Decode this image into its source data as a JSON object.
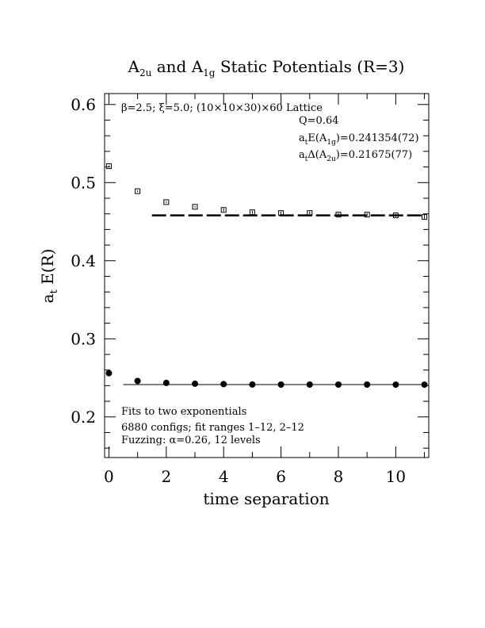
{
  "chart_data": {
    "type": "scatter",
    "title": {
      "a": "A",
      "a_sub": "2u",
      "mid": " and A",
      "b_sub": "1g",
      "end": " Static Potentials (R=3)"
    },
    "xlabel": "time separation",
    "ylabel": {
      "main": "a",
      "sub": "t",
      "rest": " E(R)"
    },
    "xlim": [
      -0.15,
      11.15
    ],
    "ylim": [
      0.148,
      0.614
    ],
    "x_ticks": [
      0,
      2,
      4,
      6,
      8,
      10
    ],
    "x_tick_labels": [
      "0",
      "2",
      "4",
      "6",
      "8",
      "10"
    ],
    "y_ticks": [
      0.2,
      0.3,
      0.4,
      0.5,
      0.6
    ],
    "y_tick_labels": [
      "0.2",
      "0.3",
      "0.4",
      "0.5",
      "0.6"
    ],
    "series": [
      {
        "marker": "open-square",
        "x": [
          0,
          1,
          2,
          3,
          4,
          5,
          6,
          7,
          8,
          9,
          10,
          11
        ],
        "y": [
          0.521,
          0.489,
          0.475,
          0.469,
          0.465,
          0.462,
          0.461,
          0.461,
          0.459,
          0.459,
          0.458,
          0.456
        ],
        "err": [
          0.001,
          0.001,
          0.001,
          0.001,
          0.002,
          0.002,
          0.002,
          0.002,
          0.002,
          0.002,
          0.002,
          0.003
        ]
      },
      {
        "marker": "filled-circle",
        "x": [
          0,
          1,
          2,
          3,
          4,
          5,
          6,
          7,
          8,
          9,
          10,
          11
        ],
        "y": [
          0.256,
          0.246,
          0.2435,
          0.2425,
          0.242,
          0.2415,
          0.2414,
          0.2414,
          0.2414,
          0.2414,
          0.2413,
          0.2413
        ],
        "err": [
          0.0005,
          0.0004,
          0.0004,
          0.0004,
          0.0004,
          0.0004,
          0.0004,
          0.0004,
          0.0004,
          0.0004,
          0.0004,
          0.0004
        ]
      }
    ],
    "fits": [
      {
        "style": "dashed",
        "x": [
          1.5,
          11.0
        ],
        "y": 0.458
      },
      {
        "style": "solid",
        "x": [
          0.5,
          11.0
        ],
        "y": 0.2414
      }
    ],
    "annotations": {
      "lattice": "β=2.5; ξ=5.0; (10×10×30)×60 Lattice",
      "q": "Q=0.64",
      "e_pre": "a",
      "e_sub": "t",
      "e_mid": "E(A",
      "e_sub2": "1g",
      "e_post": ")=0.241354(72)",
      "d_pre": "a",
      "d_sub": "t",
      "d_mid": "Δ(A",
      "d_sub2": "2u",
      "d_post": ")=0.21675(77)",
      "fits_line": "Fits to two exponentials",
      "configs_line": "6880 configs; fit ranges 1–12, 2–12",
      "fuzz_line": "Fuzzing: α=0.26, 12 levels"
    }
  }
}
